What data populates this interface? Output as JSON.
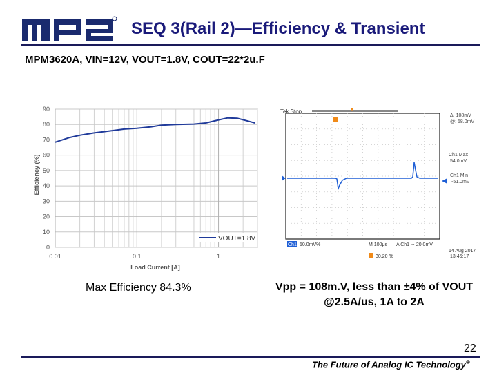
{
  "header": {
    "logo_text": "MPS",
    "title": "SEQ 3(Rail 2)—Efficiency & Transient",
    "subtitle": "MPM3620A, VIN=12V, VOUT=1.8V, COUT=22*2u.F"
  },
  "chart_data": [
    {
      "type": "line",
      "xlabel": "Load Current [A]",
      "ylabel": "Efficiency (%)",
      "x_scale": "log",
      "xlim": [
        0.01,
        3
      ],
      "ylim": [
        0,
        90
      ],
      "x_ticks": [
        "0.01",
        "0.1",
        "1"
      ],
      "y_ticks": [
        "0",
        "10",
        "20",
        "30",
        "40",
        "50",
        "60",
        "70",
        "80",
        "90"
      ],
      "grid": true,
      "legend_position": "bottom-right",
      "series": [
        {
          "name": "VOUT=1.8V",
          "x": [
            0.01,
            0.015,
            0.02,
            0.03,
            0.05,
            0.07,
            0.1,
            0.15,
            0.2,
            0.3,
            0.5,
            0.7,
            1.0,
            1.3,
            1.7,
            2.2,
            2.8
          ],
          "y": [
            68.5,
            71.5,
            73,
            74.5,
            76,
            77,
            77.5,
            78.5,
            79.5,
            80,
            80.3,
            81,
            83,
            84.3,
            84,
            82.5,
            81
          ]
        }
      ]
    },
    {
      "type": "oscilloscope",
      "status_text": "Tek Stop",
      "delta_label": "Δ: 108mV",
      "at_label": "@: 58.0mV",
      "ch1_max_label": "Ch1 Max",
      "ch1_max_value": "54.0mV",
      "ch1_min_label": "Ch1 Min",
      "ch1_min_value": "-51.0mV",
      "bottom_ch": "Ch1",
      "bottom_scale": "50.0mV%",
      "bottom_time": "M 100μs",
      "bottom_trigger": "A  Ch1  ∽ 20.0mV",
      "bottom_percent": "30.20 %",
      "date": "14 Aug 2017",
      "time": "13:46:17"
    }
  ],
  "captions": {
    "efficiency": "Max Efficiency 84.3%",
    "transient_line1": "Vpp = 108m.V, less than ±4% of VOUT",
    "transient_line2": "@2.5A/us, 1A to 2A"
  },
  "footer": {
    "page_number": "22",
    "tagline": "The Future of Analog IC Technology",
    "tagline_mark": "®"
  },
  "colors": {
    "brand": "#1a2a6e",
    "series_line": "#1f3a9a",
    "scope_trace": "#1f5fd6",
    "scope_marker": "#f08a18"
  }
}
